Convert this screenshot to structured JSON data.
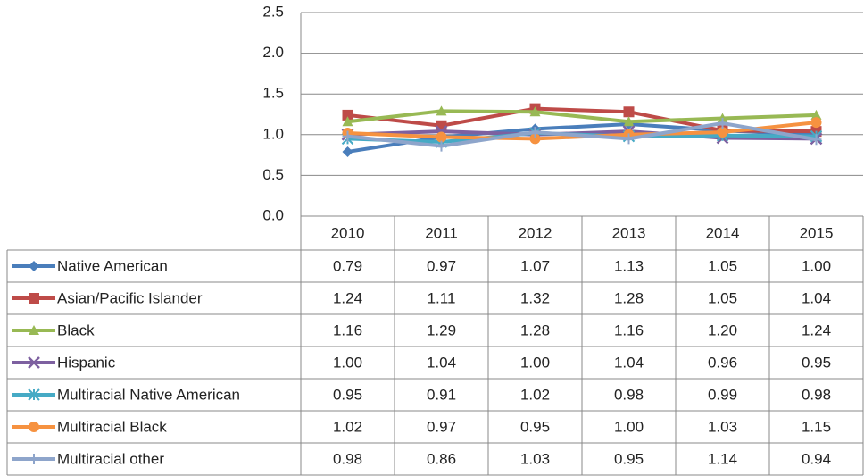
{
  "chart_data": {
    "type": "line",
    "categories": [
      "2010",
      "2011",
      "2012",
      "2013",
      "2014",
      "2015"
    ],
    "ylim": [
      0,
      2.5
    ],
    "yticks": [
      {
        "value": 0,
        "label": "0.0"
      },
      0.5,
      {
        "value": 1,
        "label": "1.0"
      },
      1.5,
      {
        "value": 2,
        "label": "2.0"
      },
      2.5
    ],
    "grid": true,
    "series": [
      {
        "name": "Native American",
        "color": "#4a7ebb",
        "marker": "diamond",
        "values": [
          0.79,
          0.97,
          1.07,
          1.13,
          1.05,
          1
        ],
        "value_labels": [
          "0.79",
          "0.97",
          "1.07",
          "1.13",
          "1.05",
          "1.00"
        ]
      },
      {
        "name": "Asian/Pacific Islander",
        "color": "#be4b48",
        "marker": "square",
        "values": [
          1.24,
          1.11,
          1.32,
          1.28,
          1.05,
          1.04
        ],
        "value_labels": [
          "1.24",
          "1.11",
          "1.32",
          "1.28",
          "1.05",
          "1.04"
        ]
      },
      {
        "name": "Black",
        "color": "#98b954",
        "marker": "triangle",
        "values": [
          1.16,
          1.29,
          1.28,
          1.16,
          1.2,
          1.24
        ],
        "value_labels": [
          "1.16",
          "1.29",
          "1.28",
          "1.16",
          "1.20",
          "1.24"
        ]
      },
      {
        "name": "Hispanic",
        "color": "#7d60a0",
        "marker": "x",
        "values": [
          1,
          1.04,
          1,
          1.04,
          0.96,
          0.95
        ],
        "value_labels": [
          "1.00",
          "1.04",
          "1.00",
          "1.04",
          "0.96",
          "0.95"
        ]
      },
      {
        "name": "Multiracial Native American",
        "color": "#46aac5",
        "marker": "star",
        "values": [
          0.95,
          0.91,
          1.02,
          0.98,
          0.99,
          0.98
        ],
        "value_labels": [
          "0.95",
          "0.91",
          "1.02",
          "0.98",
          "0.99",
          "0.98"
        ]
      },
      {
        "name": "Multiracial Black",
        "color": "#f69240",
        "marker": "circle",
        "values": [
          1.02,
          0.97,
          0.95,
          1,
          1.03,
          1.15
        ],
        "value_labels": [
          "1.02",
          "0.97",
          "0.95",
          "1.00",
          "1.03",
          "1.15"
        ]
      },
      {
        "name": "Multiracial other",
        "color": "#8ea5cb",
        "marker": "plus",
        "values": [
          0.98,
          0.86,
          1.03,
          0.95,
          1.14,
          0.94
        ],
        "value_labels": [
          "0.98",
          "0.86",
          "1.03",
          "0.95",
          "1.14",
          "0.94"
        ]
      }
    ]
  }
}
